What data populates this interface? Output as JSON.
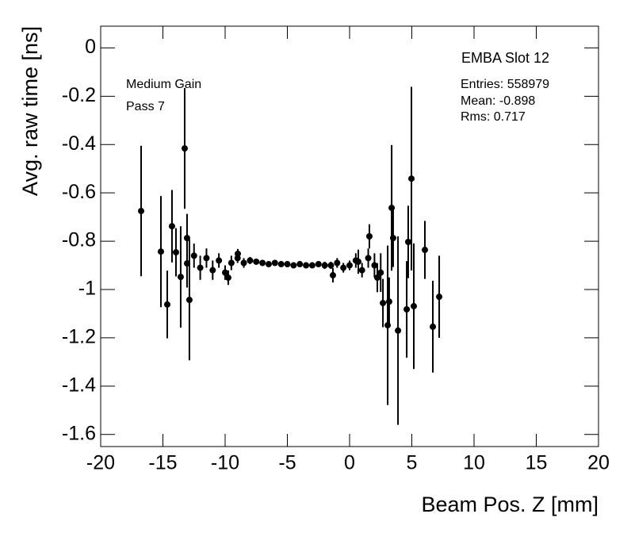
{
  "chart_data": {
    "type": "errorbar",
    "xlabel": "Beam Pos. Z [mm]",
    "ylabel": "Avg. raw time [ns]",
    "stats_title": "EMBA Slot 12",
    "stats": [
      "Entries: 558979",
      "Mean: -0.898",
      "Rms: 0.717"
    ],
    "annotations": [
      "Medium Gain",
      "Pass 7"
    ],
    "xlim": [
      -20,
      20
    ],
    "ylim": [
      -1.65,
      0.09
    ],
    "xticks": [
      -20,
      -15,
      -10,
      -5,
      0,
      5,
      10,
      15,
      20
    ],
    "yticks": [
      0,
      -0.2,
      -0.4,
      -0.6,
      -0.8,
      -1,
      -1.2,
      -1.4,
      -1.6
    ],
    "series": [
      {
        "color": "#000000",
        "x": [
          -16.75,
          -15.16,
          -14.65,
          -14.27,
          -13.95,
          -13.57,
          -13.25,
          -13.06,
          -13.06,
          -12.87,
          -12.5,
          -12,
          -11.5,
          -11,
          -10.5,
          -10,
          -9.75,
          -9.5,
          -9,
          -8.98,
          -8.5,
          -8,
          -7.5,
          -7,
          -6.5,
          -6,
          -5.5,
          -5,
          -4.5,
          -4,
          -3.5,
          -3,
          -2.5,
          -2,
          -1.5,
          -1.34,
          -1,
          -0.5,
          0,
          0.5,
          0.7,
          1,
          1.5,
          1.59,
          2,
          2.23,
          2.5,
          2.68,
          3.06,
          3.18,
          3.38,
          3.5,
          3.89,
          4.59,
          4.71,
          4.97,
          5.16,
          6.05,
          6.69,
          7.2
        ],
        "values": [
          -0.675,
          -0.843,
          -1.062,
          -0.738,
          -0.846,
          -0.948,
          -0.416,
          -0.787,
          -0.892,
          -1.043,
          -0.86,
          -0.91,
          -0.87,
          -0.92,
          -0.88,
          -0.93,
          -0.951,
          -0.89,
          -0.87,
          -0.852,
          -0.89,
          -0.88,
          -0.885,
          -0.89,
          -0.895,
          -0.89,
          -0.895,
          -0.895,
          -0.9,
          -0.895,
          -0.9,
          -0.9,
          -0.895,
          -0.9,
          -0.9,
          -0.941,
          -0.89,
          -0.91,
          -0.9,
          -0.88,
          -0.885,
          -0.92,
          -0.87,
          -0.78,
          -0.9,
          -0.951,
          -0.93,
          -1.056,
          -1.148,
          -1.05,
          -0.662,
          -0.787,
          -1.17,
          -1.082,
          -0.803,
          -0.541,
          -1.069,
          -0.836,
          -1.154,
          -1.03
        ],
        "errors": [
          0.27,
          0.23,
          0.14,
          0.15,
          0.1,
          0.21,
          0.25,
          0.1,
          0.1,
          0.25,
          0.05,
          0.05,
          0.04,
          0.04,
          0.03,
          0.03,
          0.03,
          0.03,
          0.02,
          0.02,
          0.02,
          0.015,
          0.01,
          0.01,
          0.01,
          0.01,
          0.01,
          0.01,
          0.01,
          0.01,
          0.01,
          0.01,
          0.01,
          0.015,
          0.015,
          0.03,
          0.02,
          0.02,
          0.02,
          0.03,
          0.05,
          0.03,
          0.04,
          0.05,
          0.05,
          0.06,
          0.08,
          0.1,
          0.33,
          0.1,
          0.26,
          0.12,
          0.39,
          0.2,
          0.15,
          0.38,
          0.26,
          0.12,
          0.19,
          0.17
        ]
      }
    ]
  }
}
